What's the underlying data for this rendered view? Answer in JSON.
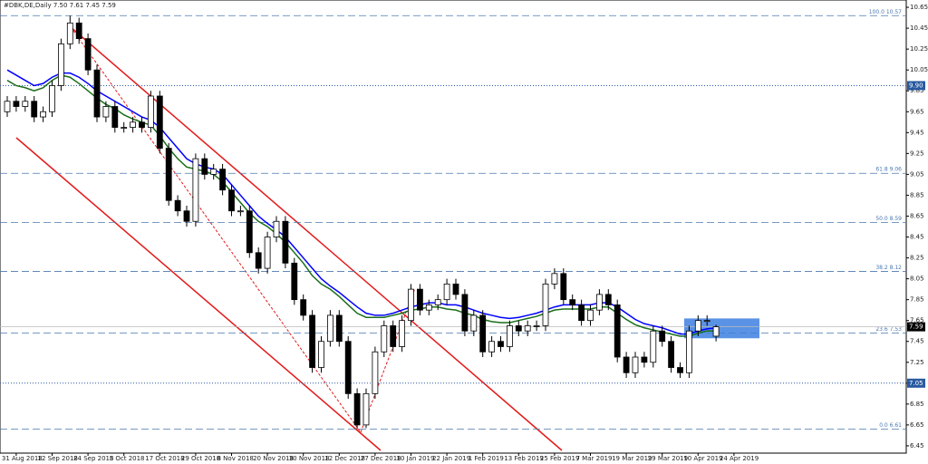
{
  "chart_data": {
    "type": "candlestick",
    "title": "#DBK,DE,Daily 7.50 7.61 7.45 7.59",
    "categories": [
      null,
      "31 Aug 2018",
      null,
      null,
      null,
      "12 Sep 2018",
      null,
      null,
      null,
      "24 Sep 2018",
      null,
      null,
      null,
      "5 Oct 2018",
      null,
      null,
      null,
      "17 Oct 2018",
      null,
      null,
      null,
      "29 Oct 2018",
      null,
      null,
      null,
      "8 Nov 2018",
      null,
      null,
      null,
      "20 Nov 2018",
      null,
      null,
      null,
      "30 Nov 2018",
      null,
      null,
      null,
      "12 Dec 2018",
      null,
      null,
      null,
      "27 Dec 2018",
      null,
      null,
      null,
      "10 Jan 2019",
      null,
      null,
      null,
      "22 Jan 2019",
      null,
      null,
      null,
      "1 Feb 2019",
      null,
      null,
      null,
      "13 Feb 2019",
      null,
      null,
      null,
      "25 Feb 2019",
      null,
      null,
      null,
      "7 Mar 2019",
      null,
      null,
      null,
      "19 Mar 2019",
      null,
      null,
      null,
      "29 Mar 2019",
      null,
      null,
      null,
      "10 Apr 2019",
      null,
      null,
      null,
      "24 Apr 2019"
    ],
    "open": [
      9.65,
      9.75,
      9.7,
      9.75,
      9.6,
      9.65,
      9.9,
      10.3,
      10.5,
      10.35,
      10.05,
      9.6,
      9.7,
      9.5,
      9.5,
      9.55,
      9.5,
      9.8,
      9.3,
      8.8,
      8.7,
      8.6,
      9.2,
      9.05,
      9.1,
      8.9,
      8.7,
      8.7,
      8.3,
      8.15,
      8.45,
      8.6,
      8.2,
      7.85,
      7.7,
      7.2,
      7.45,
      7.7,
      7.45,
      6.95,
      6.65,
      6.95,
      7.35,
      7.6,
      7.4,
      7.65,
      7.95,
      7.75,
      7.8,
      7.85,
      8.0,
      7.9,
      7.55,
      7.7,
      7.35,
      7.45,
      7.4,
      7.6,
      7.55,
      7.6,
      7.6,
      8.0,
      8.1,
      7.85,
      7.8,
      7.65,
      7.75,
      7.9,
      7.8,
      7.3,
      7.15,
      7.3,
      7.25,
      7.55,
      7.45,
      7.2,
      7.15,
      7.55,
      7.65,
      7.5,
      null,
      null
    ],
    "high": [
      9.8,
      9.8,
      9.8,
      9.8,
      9.7,
      9.95,
      10.35,
      10.57,
      10.55,
      10.4,
      10.1,
      9.75,
      9.75,
      9.55,
      9.6,
      9.6,
      9.85,
      9.85,
      9.35,
      8.85,
      8.75,
      9.25,
      9.25,
      9.15,
      9.15,
      8.95,
      8.75,
      8.75,
      8.35,
      8.5,
      8.65,
      8.65,
      8.25,
      7.9,
      7.75,
      7.5,
      7.75,
      7.75,
      7.5,
      7.0,
      7.0,
      7.4,
      7.65,
      7.65,
      7.7,
      8.0,
      8.0,
      7.85,
      7.9,
      8.05,
      8.05,
      7.95,
      7.75,
      7.75,
      7.5,
      7.5,
      7.65,
      7.65,
      7.65,
      7.65,
      8.05,
      8.15,
      8.15,
      7.9,
      7.85,
      7.8,
      7.95,
      7.95,
      7.85,
      7.35,
      7.35,
      7.35,
      7.6,
      7.6,
      7.5,
      7.25,
      7.6,
      7.7,
      7.7,
      7.61,
      null,
      null
    ],
    "low": [
      9.6,
      9.65,
      9.65,
      9.55,
      9.55,
      9.6,
      9.85,
      10.25,
      10.3,
      10.0,
      9.55,
      9.55,
      9.45,
      9.45,
      9.45,
      9.45,
      9.45,
      9.25,
      8.75,
      8.65,
      8.55,
      8.55,
      9.0,
      9.0,
      8.85,
      8.65,
      8.65,
      8.25,
      8.1,
      8.1,
      8.4,
      8.15,
      7.8,
      7.65,
      7.15,
      7.15,
      7.4,
      7.4,
      6.9,
      6.61,
      6.62,
      6.9,
      7.3,
      7.35,
      7.35,
      7.6,
      7.7,
      7.7,
      7.75,
      7.8,
      7.85,
      7.5,
      7.5,
      7.3,
      7.3,
      7.35,
      7.35,
      7.5,
      7.5,
      7.55,
      7.55,
      7.95,
      7.8,
      7.75,
      7.6,
      7.6,
      7.7,
      7.75,
      7.25,
      7.1,
      7.1,
      7.2,
      7.2,
      7.4,
      7.15,
      7.1,
      7.1,
      7.5,
      7.6,
      7.45,
      null,
      null
    ],
    "close": [
      9.75,
      9.7,
      9.75,
      9.6,
      9.65,
      9.9,
      10.3,
      10.5,
      10.35,
      10.05,
      9.6,
      9.7,
      9.5,
      9.5,
      9.55,
      9.5,
      9.8,
      9.3,
      8.8,
      8.7,
      8.6,
      9.2,
      9.05,
      9.1,
      8.9,
      8.7,
      8.7,
      8.3,
      8.15,
      8.45,
      8.6,
      8.2,
      7.85,
      7.7,
      7.2,
      7.45,
      7.7,
      7.45,
      6.95,
      6.65,
      6.95,
      7.35,
      7.6,
      7.4,
      7.65,
      7.95,
      7.75,
      7.8,
      7.85,
      8.0,
      7.9,
      7.55,
      7.7,
      7.35,
      7.45,
      7.4,
      7.6,
      7.55,
      7.6,
      7.6,
      8.0,
      8.1,
      7.85,
      7.8,
      7.65,
      7.75,
      7.9,
      7.8,
      7.3,
      7.15,
      7.3,
      7.25,
      7.55,
      7.45,
      7.2,
      7.15,
      7.55,
      7.65,
      7.65,
      7.59,
      null,
      null
    ],
    "series": [
      {
        "color": "#0000ff",
        "values": [
          10.05,
          10.0,
          9.95,
          9.9,
          9.92,
          9.98,
          10.02,
          10.02,
          9.98,
          9.92,
          9.85,
          9.8,
          9.75,
          9.7,
          9.65,
          9.6,
          9.57,
          9.5,
          9.4,
          9.3,
          9.2,
          9.15,
          9.12,
          9.1,
          9.05,
          8.95,
          8.85,
          8.75,
          8.65,
          8.58,
          8.52,
          8.45,
          8.35,
          8.25,
          8.15,
          8.05,
          7.98,
          7.92,
          7.85,
          7.78,
          7.72,
          7.7,
          7.7,
          7.72,
          7.75,
          7.78,
          7.8,
          7.82,
          7.82,
          7.8,
          7.8,
          7.78,
          7.75,
          7.72,
          7.7,
          7.68,
          7.67,
          7.68,
          7.7,
          7.72,
          7.75,
          7.78,
          7.8,
          7.8,
          7.8,
          7.8,
          7.82,
          7.82,
          7.78,
          7.72,
          7.66,
          7.62,
          7.6,
          7.58,
          7.55,
          7.52,
          7.52,
          7.55,
          7.57,
          7.58,
          null,
          null
        ]
      },
      {
        "color": "#1a6e1a",
        "values": [
          9.95,
          9.9,
          9.88,
          9.85,
          9.88,
          9.95,
          10.0,
          9.98,
          9.92,
          9.85,
          9.78,
          9.72,
          9.68,
          9.62,
          9.58,
          9.55,
          9.52,
          9.42,
          9.3,
          9.2,
          9.12,
          9.1,
          9.08,
          9.05,
          8.98,
          8.88,
          8.78,
          8.68,
          8.6,
          8.55,
          8.48,
          8.4,
          8.3,
          8.2,
          8.08,
          8.0,
          7.95,
          7.88,
          7.8,
          7.72,
          7.68,
          7.68,
          7.68,
          7.7,
          7.72,
          7.75,
          7.76,
          7.78,
          7.78,
          7.76,
          7.75,
          7.72,
          7.7,
          7.66,
          7.64,
          7.63,
          7.63,
          7.65,
          7.67,
          7.69,
          7.72,
          7.75,
          7.76,
          7.76,
          7.76,
          7.76,
          7.78,
          7.78,
          7.72,
          7.66,
          7.61,
          7.58,
          7.56,
          7.54,
          7.52,
          7.5,
          7.5,
          7.53,
          7.55,
          7.55,
          null,
          null
        ]
      }
    ],
    "fib_levels": [
      {
        "value": 10.57,
        "label": "100.0 10.57"
      },
      {
        "value": 9.06,
        "label": "61.8 9.06"
      },
      {
        "value": 8.59,
        "label": "50.0 8.59"
      },
      {
        "value": 8.12,
        "label": "38.2 8.12"
      },
      {
        "value": 7.53,
        "label": "23.6 7.53"
      },
      {
        "value": 6.61,
        "label": "0.0 6.61"
      }
    ],
    "levels": [
      {
        "value": 9.9,
        "label": "9.90"
      },
      7.05
    ],
    "last_price": 7.59,
    "ylim": [
      6.38,
      10.72
    ],
    "yticks": [
      10.65,
      10.45,
      10.25,
      10.05,
      9.85,
      9.65,
      9.45,
      9.25,
      9.05,
      8.85,
      8.65,
      8.45,
      8.25,
      8.05,
      7.85,
      7.65,
      7.45,
      7.25,
      7.05,
      6.85,
      6.65,
      6.45
    ]
  }
}
